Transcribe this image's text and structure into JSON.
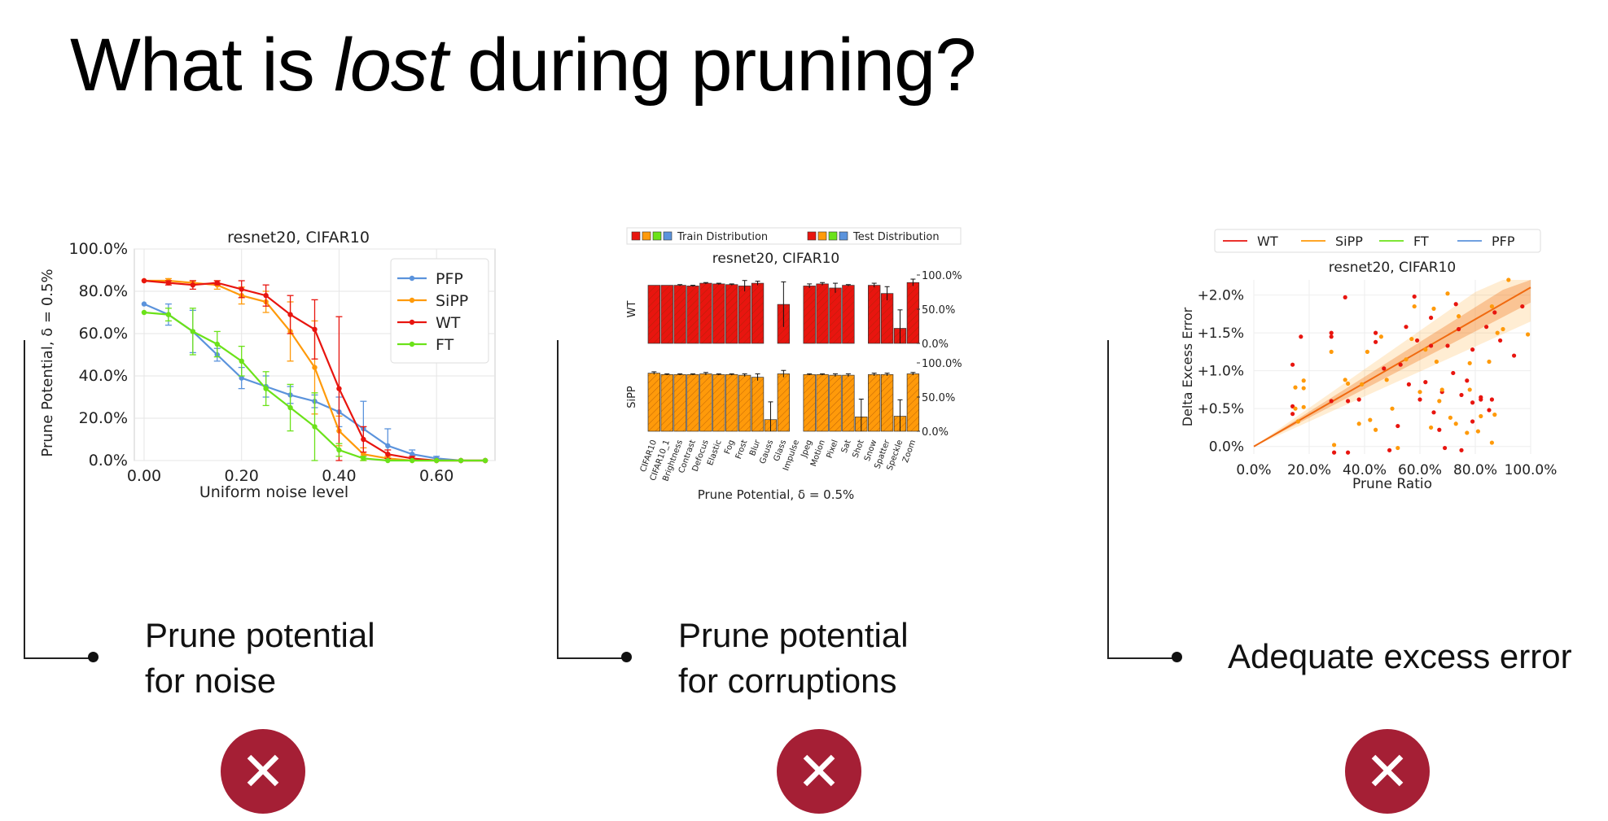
{
  "slide": {
    "title_pre": "What is ",
    "title_em": "lost",
    "title_post": " during pruning?"
  },
  "panels": [
    {
      "caption_line1": "Prune potential",
      "caption_line2": "for noise",
      "verdict_icon": "close-icon",
      "verdict_symbol": "✕"
    },
    {
      "caption_line1": "Prune potential",
      "caption_line2": "for corruptions",
      "verdict_icon": "close-icon",
      "verdict_symbol": "✕"
    },
    {
      "caption_line1": "Adequate excess error",
      "caption_line2": "",
      "verdict_icon": "close-icon",
      "verdict_symbol": "✕"
    }
  ],
  "colors": {
    "WT": "#e8150f",
    "SiPP": "#ff9a0a",
    "FT": "#6be219",
    "PFP": "#5b93dc",
    "verdict_bg": "#a51f35"
  },
  "chart_data": [
    {
      "type": "line",
      "title": "resnet20, CIFAR10",
      "xlabel": "Uniform noise level",
      "ylabel": "Prune Potential, δ = 0.5%",
      "xlim": [
        -0.02,
        0.72
      ],
      "ylim": [
        0,
        100
      ],
      "x_ticks": [
        0.0,
        0.2,
        0.4,
        0.6
      ],
      "x_tick_labels": [
        "0.00",
        "0.20",
        "0.40",
        "0.60"
      ],
      "y_ticks": [
        0,
        20,
        40,
        60,
        80,
        100
      ],
      "y_tick_labels": [
        "0.0%",
        "20.0%",
        "40.0%",
        "60.0%",
        "80.0%",
        "100.0%"
      ],
      "grid": true,
      "legend_position": "top-right",
      "x": [
        0.0,
        0.05,
        0.1,
        0.15,
        0.2,
        0.25,
        0.3,
        0.35,
        0.4,
        0.45,
        0.5,
        0.55,
        0.6,
        0.65,
        0.7
      ],
      "series": [
        {
          "name": "PFP",
          "values": [
            74,
            69,
            61,
            50,
            39,
            35,
            31,
            28,
            23,
            15,
            7,
            3,
            1,
            0,
            0
          ],
          "errors": [
            0,
            5,
            10,
            3,
            5,
            5,
            4,
            3,
            7,
            13,
            8,
            2,
            1,
            0,
            0
          ]
        },
        {
          "name": "SiPP",
          "values": [
            85,
            85,
            84,
            83,
            78,
            75,
            61,
            44,
            14,
            3,
            1,
            0,
            0,
            0,
            0
          ],
          "errors": [
            0,
            1,
            1,
            2,
            4,
            5,
            14,
            22,
            7,
            3,
            1,
            0,
            0,
            0,
            0
          ]
        },
        {
          "name": "WT",
          "values": [
            85,
            84,
            83,
            84,
            81,
            78,
            69,
            62,
            34,
            10,
            3,
            1,
            0,
            0,
            0
          ],
          "errors": [
            0,
            1,
            2,
            1,
            4,
            5,
            9,
            14,
            34,
            6,
            2,
            1,
            0,
            0,
            0
          ]
        },
        {
          "name": "FT",
          "values": [
            70,
            69,
            61,
            55,
            47,
            34,
            25,
            16,
            5,
            1,
            0,
            0,
            0,
            0,
            0
          ],
          "errors": [
            0,
            3,
            11,
            6,
            7,
            8,
            11,
            16,
            3,
            1,
            0,
            0,
            0,
            0,
            0
          ]
        }
      ]
    },
    {
      "type": "bar",
      "title": "resnet20, CIFAR10",
      "xlabel": "Prune Potential, δ = 0.5%",
      "legend": {
        "train_label": "Train Distribution",
        "test_label": "Test Distribution",
        "position": "top"
      },
      "categories": [
        "CIFAR10",
        "CIFAR10_1",
        "Brightness",
        "Contrast",
        "Defocus",
        "Elastic",
        "Fog",
        "Frost",
        "Blur",
        "Gauss",
        "Glass",
        "Impulse",
        "Jpeg",
        "Motion",
        "Pixel",
        "Sat",
        "Shot",
        "Snow",
        "Spatter",
        "Speckle",
        "Zoom"
      ],
      "y_tick_labels": [
        "0.0%",
        "50.0%",
        "100.0%"
      ],
      "ylim": [
        0,
        100
      ],
      "series": [
        {
          "name": "WT",
          "values": [
            85,
            85,
            85,
            84,
            88,
            87,
            86,
            84,
            88,
            0,
            57,
            0,
            84,
            87,
            81,
            85,
            0,
            85,
            73,
            22,
            89
          ],
          "errors": [
            0,
            0,
            1,
            1,
            1,
            1,
            1,
            8,
            3,
            0,
            33,
            0,
            3,
            2,
            7,
            1,
            0,
            3,
            10,
            27,
            5
          ]
        },
        {
          "name": "SiPP",
          "values": [
            85,
            83,
            83,
            83,
            84,
            83,
            83,
            82,
            79,
            17,
            84,
            0,
            83,
            83,
            82,
            82,
            21,
            83,
            83,
            22,
            84
          ],
          "errors": [
            2,
            1,
            1,
            1,
            2,
            1,
            1,
            2,
            5,
            26,
            5,
            0,
            1,
            1,
            2,
            2,
            26,
            2,
            2,
            24,
            2
          ]
        }
      ]
    },
    {
      "type": "scatter",
      "title": "resnet20, CIFAR10",
      "xlabel": "Prune Ratio",
      "ylabel": "Delta Excess Error",
      "xlim": [
        0,
        100
      ],
      "ylim": [
        -0.1,
        2.2
      ],
      "x_tick_labels": [
        "0.0%",
        "20.0%",
        "40.0%",
        "60.0%",
        "80.0%",
        "100.0%"
      ],
      "y_tick_labels": [
        "0.0%",
        "+0.5%",
        "+1.0%",
        "+1.5%",
        "+2.0%"
      ],
      "legend": [
        "WT",
        "SiPP",
        "FT",
        "PFP"
      ],
      "legend_position": "top",
      "trend": {
        "x": [
          0,
          100
        ],
        "y": [
          0.0,
          2.1
        ]
      },
      "series": [
        {
          "name": "WT",
          "points": [
            [
              14,
              1.08
            ],
            [
              14,
              0.43
            ],
            [
              14,
              0.53
            ],
            [
              17,
              1.45
            ],
            [
              28,
              1.45
            ],
            [
              28,
              1.5
            ],
            [
              28,
              0.6
            ],
            [
              29,
              -0.08
            ],
            [
              33,
              1.97
            ],
            [
              34,
              0.6
            ],
            [
              34,
              -0.08
            ],
            [
              38,
              0.62
            ],
            [
              44,
              1.38
            ],
            [
              44,
              1.5
            ],
            [
              47,
              1.03
            ],
            [
              49,
              -0.05
            ],
            [
              52,
              0.27
            ],
            [
              53,
              1.08
            ],
            [
              55,
              1.58
            ],
            [
              56,
              0.82
            ],
            [
              58,
              1.98
            ],
            [
              59,
              1.4
            ],
            [
              60,
              0.62
            ],
            [
              62,
              0.85
            ],
            [
              64,
              1.7
            ],
            [
              64,
              1.33
            ],
            [
              65,
              0.45
            ],
            [
              67,
              0.22
            ],
            [
              68,
              0.72
            ],
            [
              69,
              -0.02
            ],
            [
              70,
              1.33
            ],
            [
              72,
              0.97
            ],
            [
              73,
              1.88
            ],
            [
              74,
              1.55
            ],
            [
              75,
              0.68
            ],
            [
              77,
              0.87
            ],
            [
              79,
              1.28
            ],
            [
              79,
              0.58
            ],
            [
              82,
              0.62
            ],
            [
              84,
              1.58
            ],
            [
              85,
              0.48
            ],
            [
              86,
              0.62
            ],
            [
              87,
              1.77
            ],
            [
              89,
              1.4
            ],
            [
              94,
              1.2
            ],
            [
              97,
              1.85
            ],
            [
              75,
              -0.05
            ],
            [
              79,
              0.33
            ],
            [
              82,
              0.65
            ]
          ]
        },
        {
          "name": "SiPP",
          "points": [
            [
              15,
              0.78
            ],
            [
              15,
              0.5
            ],
            [
              16,
              0.33
            ],
            [
              18,
              0.87
            ],
            [
              18,
              0.77
            ],
            [
              18,
              0.52
            ],
            [
              28,
              1.25
            ],
            [
              29,
              0.02
            ],
            [
              33,
              0.88
            ],
            [
              34,
              0.83
            ],
            [
              38,
              0.3
            ],
            [
              39,
              0.82
            ],
            [
              41,
              1.25
            ],
            [
              42,
              0.35
            ],
            [
              44,
              0.22
            ],
            [
              46,
              1.45
            ],
            [
              48,
              0.88
            ],
            [
              50,
              0.5
            ],
            [
              52,
              -0.02
            ],
            [
              55,
              1.15
            ],
            [
              57,
              1.42
            ],
            [
              58,
              1.85
            ],
            [
              60,
              0.72
            ],
            [
              62,
              1.28
            ],
            [
              64,
              0.25
            ],
            [
              65,
              1.82
            ],
            [
              66,
              1.12
            ],
            [
              67,
              0.6
            ],
            [
              68,
              0.75
            ],
            [
              70,
              2.02
            ],
            [
              71,
              0.38
            ],
            [
              73,
              0.3
            ],
            [
              74,
              1.72
            ],
            [
              77,
              0.18
            ],
            [
              78,
              0.75
            ],
            [
              78,
              1.1
            ],
            [
              81,
              0.2
            ],
            [
              82,
              0.4
            ],
            [
              85,
              1.12
            ],
            [
              86,
              1.85
            ],
            [
              86,
              0.05
            ],
            [
              88,
              1.5
            ],
            [
              90,
              1.55
            ],
            [
              92,
              2.2
            ],
            [
              99,
              1.48
            ],
            [
              87,
              0.42
            ]
          ]
        }
      ]
    }
  ]
}
